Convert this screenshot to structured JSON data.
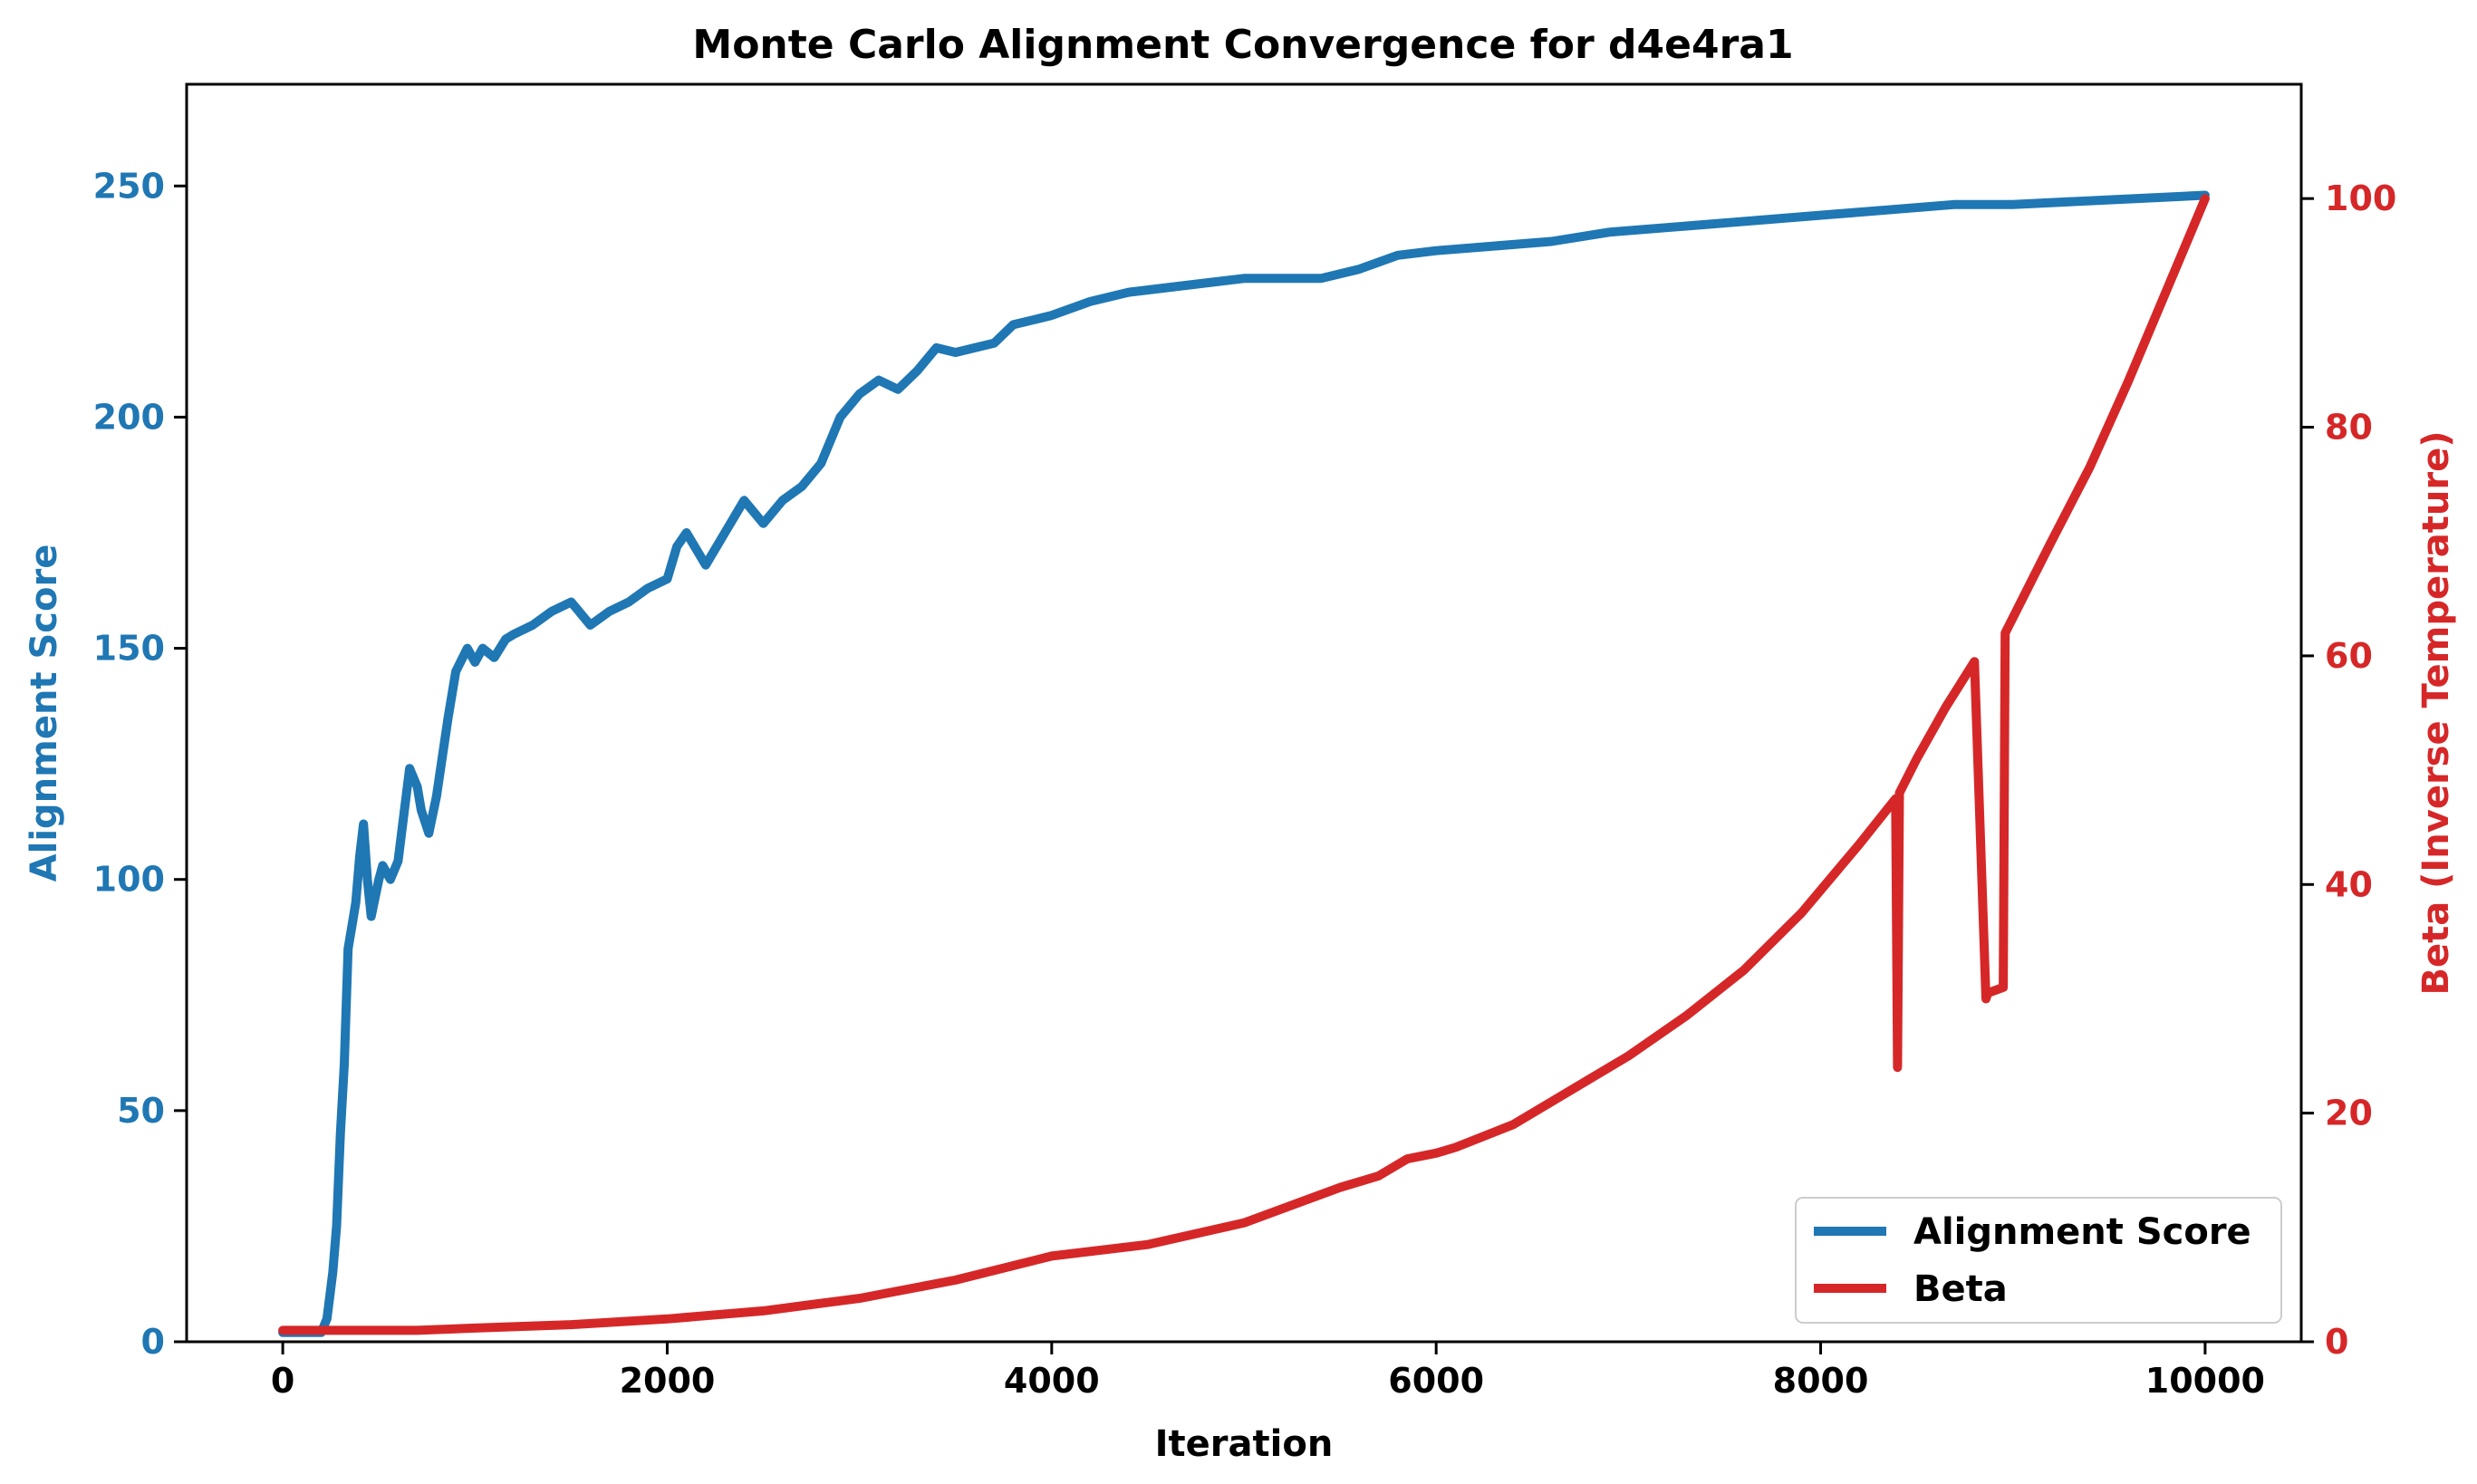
{
  "chart_data": {
    "type": "line",
    "title": "Monte Carlo Alignment Convergence for d4e4ra1",
    "xlabel": "Iteration",
    "ylabel": "Alignment Score",
    "y2label": "Beta (Inverse Temperature)",
    "xlim": [
      -500,
      10500
    ],
    "ylim": [
      0,
      272
    ],
    "y2lim": [
      0,
      110
    ],
    "x_ticks": [
      0,
      2000,
      4000,
      6000,
      8000,
      10000
    ],
    "y_ticks": [
      0,
      50,
      100,
      150,
      200,
      250
    ],
    "y2_ticks": [
      0,
      20,
      40,
      60,
      80,
      100
    ],
    "grid": false,
    "legend_position": "lower-right",
    "colors": {
      "alignment": "#1f77b4",
      "beta": "#d62728",
      "axes": "#000000"
    },
    "series": [
      {
        "name": "Alignment Score",
        "axis": "left",
        "x": [
          0,
          200,
          230,
          260,
          280,
          300,
          320,
          340,
          360,
          380,
          400,
          420,
          440,
          460,
          480,
          500,
          520,
          560,
          600,
          660,
          700,
          720,
          760,
          800,
          860,
          900,
          960,
          1000,
          1040,
          1100,
          1160,
          1200,
          1300,
          1400,
          1500,
          1600,
          1700,
          1800,
          1900,
          2000,
          2050,
          2100,
          2200,
          2300,
          2400,
          2500,
          2600,
          2700,
          2800,
          2900,
          3000,
          3100,
          3200,
          3300,
          3400,
          3500,
          3600,
          3700,
          3800,
          3900,
          4000,
          4200,
          4400,
          4600,
          4800,
          5000,
          5200,
          5400,
          5600,
          5800,
          6000,
          6300,
          6600,
          6900,
          7200,
          7500,
          7800,
          8100,
          8400,
          8700,
          9000,
          9500,
          10000
        ],
        "y": [
          2,
          2,
          5,
          15,
          25,
          45,
          60,
          85,
          90,
          95,
          105,
          112,
          100,
          92,
          96,
          100,
          103,
          100,
          104,
          124,
          120,
          115,
          110,
          118,
          135,
          145,
          150,
          147,
          150,
          148,
          152,
          153,
          155,
          158,
          160,
          155,
          158,
          160,
          163,
          165,
          172,
          175,
          168,
          175,
          182,
          177,
          182,
          185,
          190,
          200,
          205,
          208,
          206,
          210,
          215,
          214,
          215,
          216,
          220,
          221,
          222,
          225,
          227,
          228,
          229,
          230,
          230,
          230,
          232,
          235,
          236,
          237,
          238,
          240,
          241,
          242,
          243,
          244,
          245,
          246,
          246,
          247,
          248
        ]
      },
      {
        "name": "Beta",
        "axis": "right",
        "x": [
          0,
          200,
          400,
          700,
          1000,
          1500,
          2000,
          2500,
          3000,
          3500,
          4000,
          4500,
          5000,
          5500,
          5700,
          5850,
          6000,
          6100,
          6400,
          6700,
          7000,
          7300,
          7600,
          7900,
          8200,
          8390,
          8400,
          8410,
          8500,
          8650,
          8800,
          8860,
          8870,
          8950,
          8960,
          9200,
          9400,
          9600,
          9800,
          10000
        ],
        "y": [
          1,
          1,
          1,
          1,
          1.2,
          1.5,
          2,
          2.7,
          3.8,
          5.4,
          7.5,
          8.5,
          10.4,
          13.5,
          14.5,
          16,
          16.5,
          17,
          19,
          22,
          25,
          28.5,
          32.5,
          37.5,
          43.5,
          47.5,
          24,
          48,
          51,
          55.5,
          59.5,
          30,
          30.5,
          31,
          62,
          70,
          76.5,
          84,
          92,
          100
        ]
      }
    ]
  }
}
